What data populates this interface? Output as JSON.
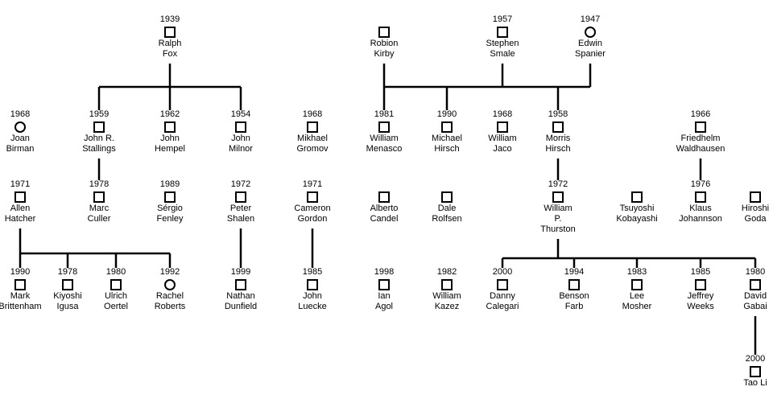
{
  "people": [
    {
      "id": "fox",
      "year": "1939",
      "shape": "square",
      "name": [
        "Ralph",
        "Fox"
      ]
    },
    {
      "id": "kirby",
      "year": "",
      "shape": "square",
      "name": [
        "Robion",
        "Kirby"
      ]
    },
    {
      "id": "smale",
      "year": "1957",
      "shape": "square",
      "name": [
        "Stephen",
        "Smale"
      ]
    },
    {
      "id": "spanier",
      "year": "1947",
      "shape": "circle",
      "name": [
        "Edwin",
        "Spanier"
      ]
    },
    {
      "id": "birman",
      "year": "1968",
      "shape": "circle",
      "name": [
        "Joan",
        "Birman"
      ]
    },
    {
      "id": "stallings",
      "year": "1959",
      "shape": "square",
      "name": [
        "John R.",
        "Stallings"
      ]
    },
    {
      "id": "hempel",
      "year": "1962",
      "shape": "square",
      "name": [
        "John",
        "Hempel"
      ]
    },
    {
      "id": "milnor",
      "year": "1954",
      "shape": "square",
      "name": [
        "John",
        "Milnor"
      ]
    },
    {
      "id": "gromov",
      "year": "1968",
      "shape": "square",
      "name": [
        "Mikhael",
        "Gromov"
      ]
    },
    {
      "id": "menasco",
      "year": "1981",
      "shape": "square",
      "name": [
        "William",
        "Menasco"
      ]
    },
    {
      "id": "mhirsch",
      "year": "1990",
      "shape": "square",
      "name": [
        "Michael",
        "Hirsch"
      ]
    },
    {
      "id": "jaco",
      "year": "1968",
      "shape": "square",
      "name": [
        "William",
        "Jaco"
      ]
    },
    {
      "id": "morris",
      "year": "1958",
      "shape": "square",
      "name": [
        "Morris",
        "Hirsch"
      ]
    },
    {
      "id": "waldhausen",
      "year": "1966",
      "shape": "square",
      "name": [
        "Friedhelm",
        "Waldhausen"
      ]
    },
    {
      "id": "hatcher",
      "year": "1971",
      "shape": "square",
      "name": [
        "Allen",
        "Hatcher"
      ]
    },
    {
      "id": "culler",
      "year": "1978",
      "shape": "square",
      "name": [
        "Marc",
        "Culler"
      ]
    },
    {
      "id": "fenley",
      "year": "1989",
      "shape": "square",
      "name": [
        "Sérgio",
        "Fenley"
      ]
    },
    {
      "id": "shalen",
      "year": "1972",
      "shape": "square",
      "name": [
        "Peter",
        "Shalen"
      ]
    },
    {
      "id": "gordon",
      "year": "1971",
      "shape": "square",
      "name": [
        "Cameron",
        "Gordon"
      ]
    },
    {
      "id": "candel",
      "year": "",
      "shape": "square",
      "name": [
        "Alberto",
        "Candel"
      ]
    },
    {
      "id": "rolfsen",
      "year": "",
      "shape": "square",
      "name": [
        "Dale",
        "Rolfsen"
      ]
    },
    {
      "id": "thurston",
      "year": "1972",
      "shape": "square",
      "name": [
        "William",
        "P.",
        "Thurston"
      ]
    },
    {
      "id": "kobayashi",
      "year": "",
      "shape": "square",
      "name": [
        "Tsuyoshi",
        "Kobayashi"
      ]
    },
    {
      "id": "johannson",
      "year": "1976",
      "shape": "square",
      "name": [
        "Klaus",
        "Johannson"
      ]
    },
    {
      "id": "goda",
      "year": "",
      "shape": "square",
      "name": [
        "Hiroshi",
        "Goda"
      ]
    },
    {
      "id": "brittenham",
      "year": "1990",
      "shape": "square",
      "name": [
        "Mark",
        "Brittenham"
      ]
    },
    {
      "id": "igusa",
      "year": "1978",
      "shape": "square",
      "name": [
        "Kiyoshi",
        "Igusa"
      ]
    },
    {
      "id": "oertel",
      "year": "1980",
      "shape": "square",
      "name": [
        "Ulrich",
        "Oertel"
      ]
    },
    {
      "id": "roberts",
      "year": "1992",
      "shape": "circle",
      "name": [
        "Rachel",
        "Roberts"
      ]
    },
    {
      "id": "dunfield",
      "year": "1999",
      "shape": "square",
      "name": [
        "Nathan",
        "Dunfield"
      ]
    },
    {
      "id": "luecke",
      "year": "1985",
      "shape": "square",
      "name": [
        "John",
        "Luecke"
      ]
    },
    {
      "id": "agol",
      "year": "1998",
      "shape": "square",
      "name": [
        "Ian",
        "Agol"
      ]
    },
    {
      "id": "kazez",
      "year": "1982",
      "shape": "square",
      "name": [
        "William",
        "Kazez"
      ]
    },
    {
      "id": "calegari",
      "year": "2000",
      "shape": "square",
      "name": [
        "Danny",
        "Calegari"
      ]
    },
    {
      "id": "farb",
      "year": "1994",
      "shape": "square",
      "name": [
        "Benson",
        "Farb"
      ]
    },
    {
      "id": "mosher",
      "year": "1983",
      "shape": "square",
      "name": [
        "Lee",
        "Mosher"
      ]
    },
    {
      "id": "weeks",
      "year": "1985",
      "shape": "square",
      "name": [
        "Jeffrey",
        "Weeks"
      ]
    },
    {
      "id": "gabai",
      "year": "1980",
      "shape": "square",
      "name": [
        "David",
        "Gabai"
      ]
    },
    {
      "id": "taoli",
      "year": "2000",
      "shape": "square",
      "name": [
        "Tao Li"
      ]
    }
  ],
  "advisor_links": [
    {
      "advisors": [
        "fox"
      ],
      "students": [
        "stallings",
        "hempel",
        "milnor"
      ]
    },
    {
      "advisors": [
        "kirby",
        "smale",
        "spanier"
      ],
      "students": [
        "menasco",
        "mhirsch",
        "morris"
      ]
    },
    {
      "advisors": [
        "stallings"
      ],
      "students": [
        "culler"
      ]
    },
    {
      "advisors": [
        "morris"
      ],
      "students": [
        "thurston"
      ]
    },
    {
      "advisors": [
        "waldhausen"
      ],
      "students": [
        "johannson"
      ]
    },
    {
      "advisors": [
        "hatcher"
      ],
      "students": [
        "brittenham",
        "igusa",
        "oertel",
        "roberts"
      ]
    },
    {
      "advisors": [
        "shalen"
      ],
      "students": [
        "dunfield"
      ]
    },
    {
      "advisors": [
        "gordon"
      ],
      "students": [
        "luecke"
      ]
    },
    {
      "advisors": [
        "thurston"
      ],
      "students": [
        "calegari",
        "farb",
        "mosher",
        "weeks",
        "gabai"
      ]
    },
    {
      "advisors": [
        "gabai"
      ],
      "students": [
        "taoli"
      ]
    }
  ]
}
